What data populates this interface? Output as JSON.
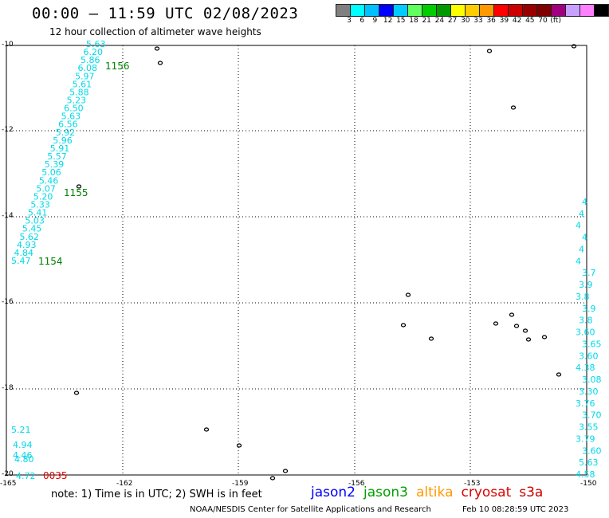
{
  "title": "00:00 – 11:59 UTC 02/08/2023",
  "subtitle": "12 hour collection of altimeter wave heights",
  "color_scale": {
    "colors": [
      "#808080",
      "#00ffff",
      "#00c0ff",
      "#0000ff",
      "#00ccff",
      "#60ff60",
      "#00cc00",
      "#009900",
      "#ffff00",
      "#ffcc00",
      "#ff9900",
      "#ff0000",
      "#cc0000",
      "#990000",
      "#800000",
      "#a00080",
      "#c8a0ff",
      "#ff80ff",
      "#000000"
    ],
    "labels": [
      "3",
      "6",
      "9",
      "12",
      "15",
      "18",
      "21",
      "24",
      "27",
      "30",
      "33",
      "36",
      "39",
      "42",
      "45",
      "70",
      "(ft)"
    ]
  },
  "map": {
    "lon_range": [
      -165,
      -150
    ],
    "lat_range": [
      -20,
      -10
    ],
    "x_ticks": [
      "-165",
      "-162",
      "-159",
      "-156",
      "-153",
      "-150"
    ],
    "y_ticks": [
      "-10",
      "-12",
      "-14",
      "-16",
      "-18",
      "-20"
    ],
    "grid": true
  },
  "tracks": [
    {
      "satellite": "jason2",
      "color": "#00d8e8",
      "labels": [
        "5.63",
        "6.20",
        "5.86",
        "6.08",
        "5.97",
        "5.61",
        "5.88",
        "5.23",
        "6.50",
        "5.63",
        "6.56",
        "5.92",
        "5.96",
        "5.91",
        "5.57",
        "5.39",
        "5.06",
        "5.46",
        "5.07",
        "5.20",
        "5.33",
        "5.41",
        "5.03",
        "5.45",
        "5.62",
        "4.93",
        "4.84",
        "5.47"
      ]
    },
    {
      "satellite": "jason2",
      "color": "#00d8e8",
      "labels": [
        "5.21",
        "4.94",
        "4.46",
        "4.80",
        "4.72"
      ]
    },
    {
      "satellite": "jason2",
      "color": "#00d8e8",
      "labels": [
        "4",
        "4",
        "4",
        "4",
        "4",
        "4",
        "3.7",
        "3.9",
        "3.8",
        "3.9",
        "3.8",
        "3.60",
        "3.65",
        "3.60",
        "4.38",
        "3.08",
        "3.30",
        "3.76",
        "3.70",
        "3.55",
        "3.79",
        "3.60",
        "5.63",
        "4.58"
      ]
    }
  ],
  "time_labels": [
    {
      "text": "1156",
      "color": "#008000"
    },
    {
      "text": "1155",
      "color": "#008000"
    },
    {
      "text": "1154",
      "color": "#008000"
    },
    {
      "text": "0035",
      "color": "#e00000"
    }
  ],
  "note": "note: 1) Time is in UTC; 2) SWH is in feet",
  "legend": [
    {
      "name": "jason2",
      "color": "#0000ff"
    },
    {
      "name": "jason3",
      "color": "#00a000"
    },
    {
      "name": "altika",
      "color": "#ff9900"
    },
    {
      "name": "cryosat",
      "color": "#e00000"
    },
    {
      "name": "s3a",
      "color": "#cc0000"
    }
  ],
  "credit": "NOAA/NESDIS Center for Satellite Applications and Research",
  "timestamp": "Feb 10 08:28:59 UTC 2023"
}
